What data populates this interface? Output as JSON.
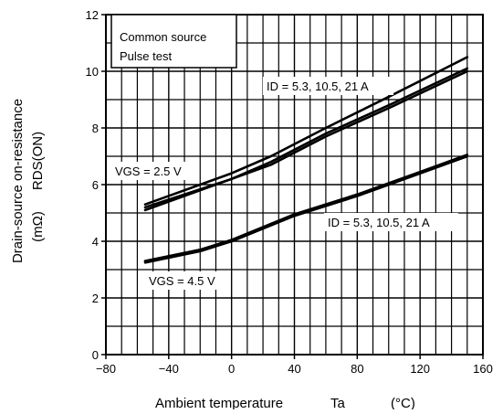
{
  "chart_data": {
    "type": "line",
    "title": "",
    "xlabel": "Ambient temperature",
    "xlabel_symbol": "Ta",
    "xlabel_unit": "(°C)",
    "ylabel_line1": "Drain-source on-resistance",
    "ylabel_symbol": "RDS(ON)",
    "ylabel_unit": "(mΩ)",
    "xlim": [
      -80,
      160
    ],
    "ylim": [
      0,
      12
    ],
    "x_ticks": [
      "−80",
      "−40",
      "0",
      "40",
      "80",
      "120",
      "160"
    ],
    "y_ticks": [
      "0",
      "2",
      "4",
      "6",
      "8",
      "10",
      "12"
    ],
    "grid": true,
    "notes_box": [
      "Common source",
      "Pulse test"
    ],
    "annotations": {
      "id_upper": "ID = 5.3, 10.5, 21 A",
      "id_lower": "ID = 5.3, 10.5, 21 A",
      "vgs_25": "VGS = 2.5 V",
      "vgs_45": "VGS = 4.5 V"
    },
    "series": [
      {
        "group": "VGS = 2.5 V",
        "x": [
          -55,
          0,
          25,
          60,
          100,
          150
        ],
        "y": [
          5.3,
          6.4,
          7.0,
          8.0,
          9.1,
          10.5
        ]
      },
      {
        "group": "VGS = 2.5 V",
        "x": [
          -55,
          0,
          25,
          60,
          100,
          150
        ],
        "y": [
          5.2,
          6.2,
          6.8,
          7.8,
          8.8,
          10.1
        ]
      },
      {
        "group": "VGS = 2.5 V",
        "x": [
          -55,
          0,
          25,
          60,
          100,
          150
        ],
        "y": [
          5.1,
          6.2,
          6.7,
          7.7,
          8.7,
          10.0
        ]
      },
      {
        "group": "VGS = 4.5 V",
        "x": [
          -55,
          -20,
          0,
          40,
          80,
          120,
          150
        ],
        "y": [
          3.3,
          3.7,
          4.0,
          4.9,
          5.6,
          6.4,
          7.0
        ]
      },
      {
        "group": "VGS = 4.5 V",
        "x": [
          -55,
          -20,
          0,
          40,
          80,
          120,
          150
        ],
        "y": [
          3.3,
          3.7,
          4.05,
          4.95,
          5.65,
          6.45,
          7.05
        ]
      },
      {
        "group": "VGS = 4.5 V",
        "x": [
          -55,
          -20,
          0,
          40,
          80,
          120,
          150
        ],
        "y": [
          3.25,
          3.65,
          4.0,
          4.9,
          5.6,
          6.4,
          7.0
        ]
      }
    ]
  }
}
